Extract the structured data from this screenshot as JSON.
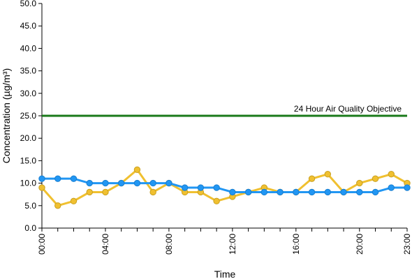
{
  "chart_data": {
    "type": "line",
    "xlabel": "Time",
    "ylabel": "Concentration (µg/m³)",
    "ylim": [
      0,
      50
    ],
    "y_ticks": [
      "0.0",
      "5.0",
      "10.0",
      "15.0",
      "20.0",
      "25.0",
      "30.0",
      "35.0",
      "40.0",
      "45.0",
      "50.0"
    ],
    "x_tick_labels": [
      "00:00",
      "04:00",
      "08:00",
      "12:00",
      "16:00",
      "20:00",
      "23:00"
    ],
    "x_tick_hours": [
      0,
      4,
      8,
      12,
      16,
      20,
      23
    ],
    "hours": [
      0,
      1,
      2,
      3,
      4,
      5,
      6,
      7,
      8,
      9,
      10,
      11,
      12,
      13,
      14,
      15,
      16,
      17,
      18,
      19,
      20,
      21,
      22,
      23
    ],
    "series": [
      {
        "color": "#f0c030",
        "values": [
          9,
          5,
          6,
          8,
          8,
          10,
          13,
          8,
          10,
          8,
          8,
          6,
          7,
          8,
          9,
          8,
          8,
          11,
          12,
          8,
          10,
          11,
          12,
          10
        ]
      },
      {
        "color": "#2196f3",
        "values": [
          11,
          11,
          11,
          10,
          10,
          10,
          10,
          10,
          10,
          9,
          9,
          9,
          8,
          8,
          8,
          8,
          8,
          8,
          8,
          8,
          8,
          8,
          9,
          9
        ]
      }
    ],
    "objective": {
      "value": 25,
      "label": "24 Hour Air Quality Objective",
      "color": "#1a7a1a"
    },
    "grid": false,
    "legend": "none"
  }
}
